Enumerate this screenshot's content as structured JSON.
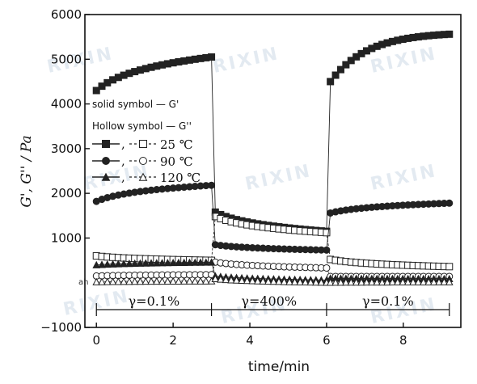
{
  "chart_data": {
    "type": "scatter",
    "xlabel": "time/min",
    "ylabel": "G', G'' / Pa",
    "xlim": [
      -0.3,
      9.5
    ],
    "ylim": [
      -1000,
      6000
    ],
    "x_ticks": [
      0,
      2,
      4,
      6,
      8
    ],
    "y_ticks": [
      -1000,
      1000,
      2000,
      3000,
      4000,
      5000,
      6000
    ],
    "y_tick_labels": [
      "−1000",
      "1000",
      "2000",
      "3000",
      "4000",
      "5000",
      "6000"
    ],
    "small_label": "ah",
    "legend": {
      "line1": "solid symbol — G'",
      "line2": "Hollow symbol — G''",
      "entries": [
        {
          "label": "25 ℃",
          "marker": "square"
        },
        {
          "label": "90 ℃",
          "marker": "circle"
        },
        {
          "label": "120 ℃",
          "marker": "triangle"
        }
      ],
      "placement": "left"
    },
    "phases": [
      {
        "label": "γ=0.1%",
        "start": 0,
        "end": 3
      },
      {
        "label": "γ=400%",
        "start": 3,
        "end": 6
      },
      {
        "label": "γ=0.1%",
        "start": 6,
        "end": 9.2
      }
    ],
    "watermark": "RIXIN",
    "series": [
      {
        "name": "25 ℃",
        "modulus": "G'",
        "marker": "square",
        "filled": true,
        "segments": [
          {
            "t0": 0.0,
            "t1": 3.0,
            "n": 22,
            "v0": 4300,
            "v1": 5050,
            "shape": "log"
          },
          {
            "t0": 3.1,
            "t1": 6.0,
            "n": 22,
            "v0": 1580,
            "v1": 1150,
            "shape": "log"
          },
          {
            "t0": 6.1,
            "t1": 9.2,
            "n": 24,
            "v0": 4500,
            "v1": 5560,
            "shape": "sat"
          }
        ]
      },
      {
        "name": "25 ℃",
        "modulus": "G''",
        "marker": "square",
        "filled": false,
        "segments": [
          {
            "t0": 0.0,
            "t1": 3.0,
            "n": 22,
            "v0": 600,
            "v1": 500,
            "shape": "log"
          },
          {
            "t0": 3.1,
            "t1": 6.0,
            "n": 22,
            "v0": 1480,
            "v1": 1120,
            "shape": "log"
          },
          {
            "t0": 6.1,
            "t1": 9.2,
            "n": 24,
            "v0": 520,
            "v1": 360,
            "shape": "log"
          }
        ]
      },
      {
        "name": "90 ℃",
        "modulus": "G'",
        "marker": "circle",
        "filled": true,
        "segments": [
          {
            "t0": 0.0,
            "t1": 3.0,
            "n": 22,
            "v0": 1820,
            "v1": 2180,
            "shape": "log"
          },
          {
            "t0": 3.1,
            "t1": 6.0,
            "n": 22,
            "v0": 850,
            "v1": 730,
            "shape": "log"
          },
          {
            "t0": 6.1,
            "t1": 9.2,
            "n": 24,
            "v0": 1560,
            "v1": 1780,
            "shape": "log"
          }
        ]
      },
      {
        "name": "90 ℃",
        "modulus": "G''",
        "marker": "circle",
        "filled": false,
        "segments": [
          {
            "t0": 0.0,
            "t1": 3.0,
            "n": 22,
            "v0": 150,
            "v1": 180,
            "shape": "log"
          },
          {
            "t0": 3.1,
            "t1": 6.0,
            "n": 22,
            "v0": 460,
            "v1": 330,
            "shape": "log"
          },
          {
            "t0": 6.1,
            "t1": 9.2,
            "n": 24,
            "v0": 140,
            "v1": 140,
            "shape": "log"
          }
        ]
      },
      {
        "name": "120 ℃",
        "modulus": "G'",
        "marker": "triangle",
        "filled": true,
        "segments": [
          {
            "t0": 0.0,
            "t1": 3.0,
            "n": 22,
            "v0": 400,
            "v1": 460,
            "shape": "log"
          },
          {
            "t0": 3.1,
            "t1": 6.0,
            "n": 22,
            "v0": 150,
            "v1": 60,
            "shape": "log"
          },
          {
            "t0": 6.1,
            "t1": 9.2,
            "n": 24,
            "v0": 100,
            "v1": 90,
            "shape": "log"
          }
        ]
      },
      {
        "name": "120 ℃",
        "modulus": "G''",
        "marker": "triangle",
        "filled": false,
        "segments": [
          {
            "t0": 0.0,
            "t1": 3.0,
            "n": 22,
            "v0": 20,
            "v1": 40,
            "shape": "log"
          },
          {
            "t0": 3.1,
            "t1": 6.0,
            "n": 22,
            "v0": 90,
            "v1": 10,
            "shape": "log"
          },
          {
            "t0": 6.1,
            "t1": 9.2,
            "n": 24,
            "v0": 10,
            "v1": 20,
            "shape": "log"
          }
        ]
      }
    ]
  }
}
